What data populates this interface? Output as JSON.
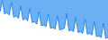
{
  "chart_data": {
    "type": "area",
    "categories": [
      null,
      null,
      null,
      null,
      null,
      null,
      null,
      null,
      null,
      null,
      null,
      null,
      null,
      null,
      null,
      null,
      null,
      null,
      null,
      null,
      null,
      null,
      null,
      null,
      null,
      null,
      null,
      null,
      null,
      null,
      null,
      null,
      null,
      null,
      null,
      null,
      null,
      null,
      null,
      null,
      null,
      null,
      null,
      null,
      null,
      null,
      null,
      null
    ],
    "values": [
      -18500,
      -17200,
      -18800,
      -18600,
      -18900,
      -17400,
      -19200,
      -19000,
      -19300,
      -17800,
      -19500,
      -19300,
      -19600,
      -18100,
      -19800,
      -19700,
      -20000,
      -18500,
      -20200,
      -20100,
      -20300,
      -18800,
      -20500,
      -20400,
      -20600,
      -19000,
      -20700,
      -20600,
      -20500,
      -18700,
      -20800,
      -20700,
      -20900,
      -19200,
      -21000,
      -20900,
      -21100,
      -19400,
      -21200,
      -21100,
      -21300,
      -19700,
      -21500,
      -21400,
      -21600,
      -19900,
      -21700,
      -21600
    ],
    "color": "#2288ee",
    "ylim": [
      -21900,
      -17100
    ],
    "grid": false,
    "tick_labels": false
  }
}
